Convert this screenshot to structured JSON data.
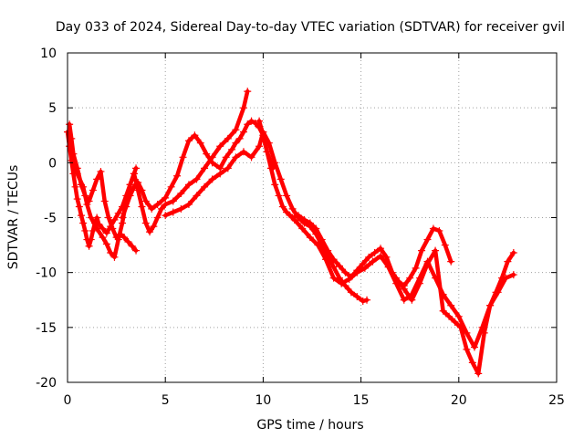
{
  "chart_data": {
    "type": "scatter",
    "title": "Day 033 of 2024, Sidereal Day-to-day VTEC variation (SDTVAR) for receiver gvil",
    "xlabel": "GPS time / hours",
    "ylabel": "SDTVAR / TECUs",
    "xlim": [
      0,
      25
    ],
    "ylim": [
      -20,
      10
    ],
    "xticks": [
      0,
      5,
      10,
      15,
      20,
      25
    ],
    "yticks": [
      -20,
      -15,
      -10,
      -5,
      0,
      5,
      10
    ],
    "grid": true,
    "marker": "+",
    "color": "#ff0000",
    "series": [
      {
        "x": [
          0.0,
          0.1,
          0.2,
          0.3,
          0.4,
          0.5,
          0.6,
          0.7,
          0.8,
          0.9,
          1.0,
          1.1,
          1.2,
          1.3,
          1.4,
          1.5,
          1.6,
          1.8,
          2.0,
          2.2,
          2.4,
          2.6,
          2.8,
          3.0,
          3.2,
          3.4,
          3.5
        ],
        "y": [
          2.8,
          1.5,
          0.2,
          -1.0,
          -2.2,
          -3.3,
          -4.0,
          -4.8,
          -5.5,
          -6.2,
          -7.0,
          -7.6,
          -7.0,
          -6.2,
          -5.5,
          -5.0,
          -5.6,
          -6.0,
          -6.4,
          -5.8,
          -5.2,
          -4.6,
          -4.0,
          -3.0,
          -2.0,
          -1.0,
          -0.5
        ]
      },
      {
        "x": [
          0.1,
          0.2,
          0.3,
          0.5,
          0.7,
          0.9,
          1.1,
          1.3,
          1.5,
          1.7,
          1.9,
          2.1,
          2.3,
          2.5,
          2.7,
          2.9,
          3.1,
          3.3,
          3.5
        ],
        "y": [
          3.5,
          2.2,
          0.8,
          -0.5,
          -2.0,
          -3.0,
          -3.5,
          -2.5,
          -1.5,
          -0.8,
          -3.5,
          -5.0,
          -6.0,
          -6.8,
          -6.5,
          -6.8,
          -7.2,
          -7.6,
          -8.0
        ]
      },
      {
        "x": [
          0.3,
          0.5,
          0.8,
          1.0,
          1.2,
          1.5,
          1.8,
          2.0,
          2.2,
          2.4,
          2.6,
          2.8,
          3.0,
          3.2,
          3.4,
          3.6,
          3.8,
          4.0,
          4.2,
          4.4,
          4.6,
          4.8,
          5.0,
          5.4,
          5.8,
          6.2,
          6.6,
          7.0,
          7.4,
          7.8,
          8.2,
          8.6,
          9.0,
          9.2
        ],
        "y": [
          0.0,
          -1.0,
          -2.2,
          -3.8,
          -5.0,
          -6.0,
          -6.8,
          -7.4,
          -8.2,
          -8.6,
          -7.0,
          -5.5,
          -3.5,
          -2.0,
          -1.0,
          -2.5,
          -4.0,
          -5.5,
          -6.3,
          -5.8,
          -5.0,
          -4.2,
          -3.8,
          -3.5,
          -2.8,
          -2.0,
          -1.5,
          -0.5,
          0.5,
          1.5,
          2.2,
          3.0,
          5.0,
          6.5
        ]
      },
      {
        "x": [
          2.8,
          3.0,
          3.2,
          3.4,
          3.6,
          3.8,
          4.0,
          4.3,
          4.6,
          5.0,
          5.3,
          5.6,
          5.9,
          6.2,
          6.5,
          6.8,
          7.1,
          7.4,
          7.8,
          8.1,
          8.4,
          8.6,
          8.8,
          9.0,
          9.2,
          9.4,
          9.6,
          9.8,
          10.0,
          10.2,
          10.5
        ],
        "y": [
          -5.0,
          -4.0,
          -3.0,
          -2.2,
          -1.8,
          -2.5,
          -3.5,
          -4.2,
          -3.8,
          -3.2,
          -2.2,
          -1.2,
          0.5,
          2.0,
          2.5,
          1.8,
          0.8,
          0.0,
          -0.5,
          0.5,
          1.2,
          1.8,
          2.2,
          2.8,
          3.5,
          3.8,
          3.6,
          3.2,
          2.5,
          1.0,
          -0.5
        ]
      },
      {
        "x": [
          5.0,
          5.4,
          5.8,
          6.2,
          6.6,
          7.0,
          7.4,
          7.8,
          8.2,
          8.6,
          9.0,
          9.4,
          9.8,
          10.0,
          10.3,
          10.6,
          10.9,
          11.2,
          11.5,
          11.8,
          12.1,
          12.4,
          12.7,
          13.0,
          13.3,
          13.6,
          13.9,
          14.2,
          14.5,
          14.8,
          15.1,
          15.3
        ],
        "y": [
          -4.8,
          -4.5,
          -4.2,
          -3.8,
          -3.0,
          -2.2,
          -1.5,
          -1.0,
          -0.5,
          0.5,
          1.0,
          0.5,
          1.5,
          2.8,
          1.8,
          0.0,
          -1.5,
          -3.0,
          -4.2,
          -5.0,
          -5.5,
          -5.8,
          -6.5,
          -7.5,
          -8.5,
          -9.5,
          -10.5,
          -11.2,
          -11.8,
          -12.2,
          -12.6,
          -12.5
        ]
      },
      {
        "x": [
          9.8,
          10.0,
          10.2,
          10.4,
          10.6,
          10.8,
          11.0,
          11.2,
          11.5,
          11.8,
          12.1,
          12.4,
          12.7,
          13.0,
          13.3,
          13.6,
          13.9,
          14.2,
          14.5,
          14.8,
          15.1,
          15.4,
          15.7,
          16.0,
          16.3,
          16.6,
          16.9,
          17.2,
          17.5,
          17.8,
          18.1,
          18.4,
          18.7,
          19.0,
          19.3,
          19.6
        ],
        "y": [
          3.8,
          2.5,
          1.0,
          -0.5,
          -2.0,
          -3.0,
          -4.0,
          -4.5,
          -5.0,
          -4.8,
          -5.2,
          -5.5,
          -6.0,
          -7.0,
          -8.0,
          -8.8,
          -9.4,
          -10.0,
          -10.4,
          -9.8,
          -9.2,
          -8.6,
          -8.2,
          -7.8,
          -8.6,
          -10.0,
          -10.8,
          -11.2,
          -10.5,
          -9.6,
          -8.0,
          -7.0,
          -6.0,
          -6.2,
          -7.5,
          -9.0
        ]
      },
      {
        "x": [
          11.2,
          11.6,
          12.0,
          12.4,
          12.8,
          13.2,
          13.6,
          14.0,
          14.4,
          14.8,
          15.2,
          15.6,
          16.0,
          16.4,
          16.8,
          17.2,
          17.6,
          18.0,
          18.4,
          18.8,
          19.2,
          19.6,
          20.0,
          20.4,
          20.8,
          21.2,
          21.6,
          22.0,
          22.4,
          22.8
        ],
        "y": [
          -4.5,
          -5.2,
          -6.0,
          -6.8,
          -7.5,
          -8.8,
          -10.5,
          -11.0,
          -10.6,
          -10.0,
          -9.6,
          -9.0,
          -8.5,
          -9.5,
          -11.0,
          -12.5,
          -12.0,
          -10.5,
          -9.0,
          -10.5,
          -12.0,
          -13.0,
          -14.0,
          -15.5,
          -16.8,
          -15.0,
          -13.0,
          -11.8,
          -10.5,
          -10.2
        ]
      },
      {
        "x": [
          16.8,
          17.2,
          17.6,
          18.0,
          18.4,
          18.8,
          19.2,
          19.5,
          19.8,
          20.1,
          20.4,
          20.7,
          21.0,
          21.3,
          21.6,
          21.9,
          22.2,
          22.5,
          22.8
        ],
        "y": [
          -10.5,
          -11.5,
          -12.5,
          -11.0,
          -9.2,
          -8.0,
          -13.5,
          -14.0,
          -14.5,
          -15.0,
          -17.0,
          -18.2,
          -19.2,
          -15.5,
          -13.0,
          -11.8,
          -10.5,
          -9.0,
          -8.2
        ]
      }
    ]
  }
}
